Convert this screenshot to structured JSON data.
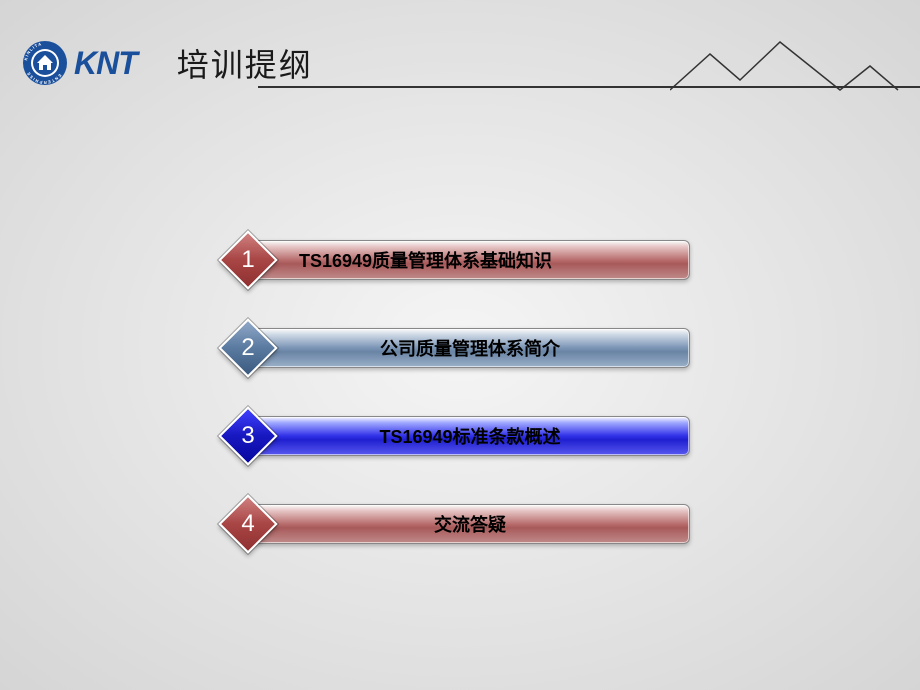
{
  "logo": {
    "brand_text": "KNT",
    "ring_text_top": "ENTERPRISE",
    "ring_text_side": "KINLITA",
    "brand_color": "#1a4f9c",
    "text_color": "#1a4f9c"
  },
  "title": {
    "text": "培训提纲",
    "color": "#1a1a1a",
    "underline_color": "#333333"
  },
  "mountain": {
    "stroke": "#333333"
  },
  "items": [
    {
      "number": "1",
      "label": "TS16949质量管理体系基础知识",
      "bar_style": "bar-red",
      "diamond_style": "d-red",
      "align": "left"
    },
    {
      "number": "2",
      "label": "公司质量管理体系简介",
      "bar_style": "bar-steel",
      "diamond_style": "d-steel",
      "align": "center"
    },
    {
      "number": "3",
      "label": "TS16949标准条款概述",
      "bar_style": "bar-blue",
      "diamond_style": "d-blue",
      "align": "center"
    },
    {
      "number": "4",
      "label": "交流答疑",
      "bar_style": "bar-red",
      "diamond_style": "d-red",
      "align": "center"
    }
  ]
}
